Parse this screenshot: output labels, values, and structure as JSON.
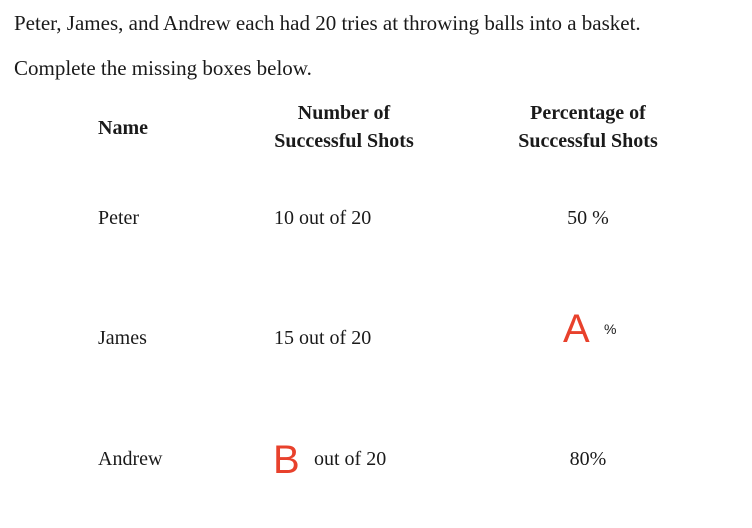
{
  "intro": {
    "line1": "Peter, James, and Andrew each had 20 tries at throwing balls into a basket.",
    "line2": "Complete the missing boxes below."
  },
  "table": {
    "headers": {
      "name": "Name",
      "shots_line1": "Number of",
      "shots_line2": "Successful Shots",
      "pct_line1": "Percentage of",
      "pct_line2": "Successful Shots"
    },
    "rows": [
      {
        "name": "Peter",
        "shots": "10 out of 20",
        "percentage": "50 %"
      },
      {
        "name": "James",
        "shots": "15 out of 20",
        "percentage_marker": "A",
        "percentage_suffix": "%"
      },
      {
        "name": "Andrew",
        "shots_marker": "B",
        "shots_suffix": "out of 20",
        "percentage": "80%"
      }
    ]
  },
  "colors": {
    "text": "#1a1a1a",
    "marker": "#e8412c"
  }
}
